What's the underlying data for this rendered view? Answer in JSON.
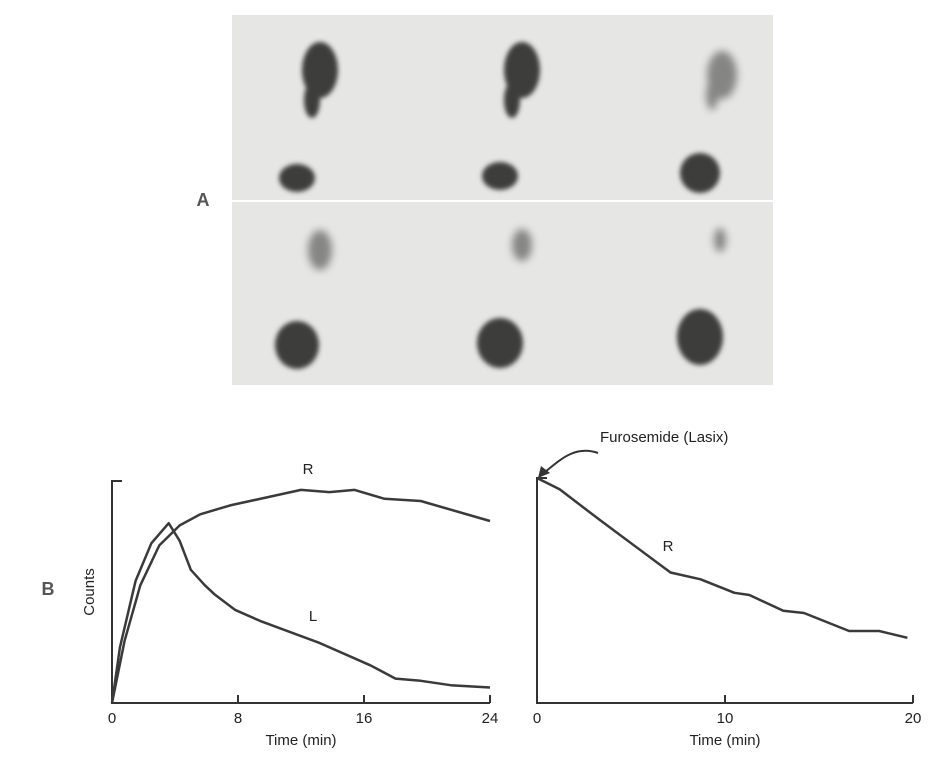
{
  "panel_labels": [
    "A",
    "B"
  ],
  "chart_data": [
    {
      "type": "line",
      "xlabel": "Time (min)",
      "ylabel": "Counts",
      "xlim": [
        0,
        24
      ],
      "xticks": [
        0,
        8,
        16,
        24
      ],
      "ylim": [
        0,
        100
      ],
      "series": [
        {
          "name": "R",
          "color": "#3a3a3a",
          "x": [
            0,
            0.8,
            1.8,
            3,
            4.3,
            5.6,
            7.5,
            12,
            13.8,
            15.4,
            17.3,
            19.6,
            24
          ],
          "values": [
            0,
            28,
            53,
            71,
            80,
            85,
            89,
            96,
            95,
            96,
            92,
            91,
            82
          ]
        },
        {
          "name": "L",
          "color": "#3a3a3a",
          "x": [
            0,
            0.5,
            1.5,
            2.5,
            3.6,
            4.3,
            5,
            5.9,
            6.5,
            7.8,
            9.4,
            13.2,
            16.4,
            18,
            19.6,
            21.5,
            24
          ],
          "values": [
            0,
            25,
            55,
            72,
            81,
            73,
            60,
            53,
            49,
            42,
            37,
            27,
            17,
            11,
            10,
            8,
            7
          ]
        }
      ]
    },
    {
      "type": "line",
      "xlabel": "Time (min)",
      "annotation": "Furosemide (Lasix)",
      "xlim": [
        0,
        20
      ],
      "xticks": [
        0,
        10,
        20
      ],
      "ylim": [
        0,
        100
      ],
      "series": [
        {
          "name": "R",
          "color": "#3a3a3a",
          "x": [
            0,
            1.2,
            3.4,
            7.1,
            8.7,
            10.5,
            11.3,
            13.1,
            14.2,
            16.6,
            18.2,
            19.7
          ],
          "values": [
            100,
            95,
            81,
            58,
            55,
            49,
            48,
            41,
            40,
            32,
            32,
            29
          ]
        }
      ]
    }
  ]
}
